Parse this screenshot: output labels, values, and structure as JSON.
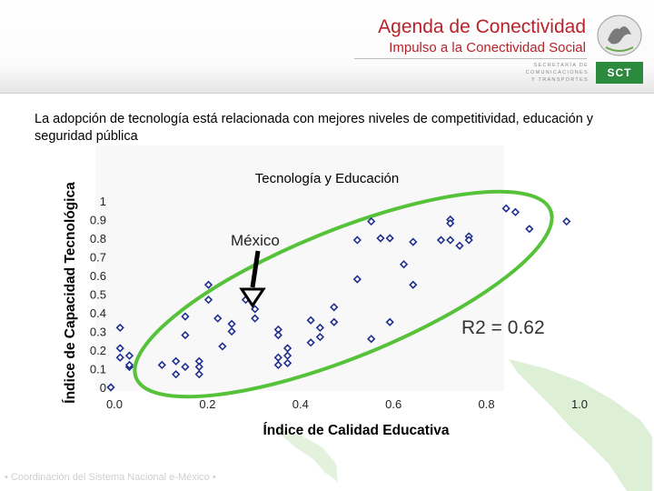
{
  "header": {
    "title": "Agenda de Conectividad",
    "subtitle": "Impulso a la Conectividad Social",
    "secretaria_lines": [
      "SECRETARÍA DE",
      "COMUNICACIONES",
      "Y TRANSPORTES"
    ],
    "logo_text": "SCT",
    "accent_color": "#b8232a",
    "brand_color": "#2b8a3e"
  },
  "intro_text": "La adopción de tecnología está relacionada con mejores niveles de competitividad, educación y seguridad pública",
  "footer_text": "• Coordinación del Sistema Nacional e-México •",
  "chart_data": {
    "type": "scatter",
    "title": "Tecnología y Educación",
    "xlabel": "Índice de Calidad Educativa",
    "ylabel": "Índice de Capacidad Tecnológica",
    "xlim": [
      0,
      1
    ],
    "ylim": [
      0,
      1
    ],
    "x_ticks": [
      "0.0",
      "0.2",
      "0.4",
      "0.6",
      "0.8",
      "1.0"
    ],
    "y_ticks": [
      "0",
      "0.1",
      "0.2",
      "0.3",
      "0.4",
      "0.5",
      "0.6",
      "0.7",
      "0.8",
      "0.9",
      "1"
    ],
    "annotation_label": "México",
    "highlight_point": [
      0.29,
      0.47
    ],
    "r2_label": "R2 = 0.62",
    "marker_color": "#1f2f8f",
    "ellipse_color": "#55c23a",
    "points": [
      [
        0.0,
        0.0
      ],
      [
        0.02,
        0.32
      ],
      [
        0.02,
        0.21
      ],
      [
        0.02,
        0.16
      ],
      [
        0.04,
        0.17
      ],
      [
        0.04,
        0.11
      ],
      [
        0.04,
        0.12
      ],
      [
        0.11,
        0.12
      ],
      [
        0.14,
        0.14
      ],
      [
        0.14,
        0.07
      ],
      [
        0.16,
        0.38
      ],
      [
        0.16,
        0.28
      ],
      [
        0.16,
        0.11
      ],
      [
        0.19,
        0.14
      ],
      [
        0.19,
        0.11
      ],
      [
        0.19,
        0.07
      ],
      [
        0.21,
        0.55
      ],
      [
        0.21,
        0.47
      ],
      [
        0.23,
        0.37
      ],
      [
        0.24,
        0.22
      ],
      [
        0.26,
        0.34
      ],
      [
        0.26,
        0.3
      ],
      [
        0.29,
        0.47
      ],
      [
        0.31,
        0.37
      ],
      [
        0.31,
        0.42
      ],
      [
        0.36,
        0.31
      ],
      [
        0.36,
        0.28
      ],
      [
        0.38,
        0.21
      ],
      [
        0.36,
        0.16
      ],
      [
        0.36,
        0.12
      ],
      [
        0.38,
        0.13
      ],
      [
        0.38,
        0.17
      ],
      [
        0.43,
        0.36
      ],
      [
        0.43,
        0.24
      ],
      [
        0.45,
        0.32
      ],
      [
        0.45,
        0.27
      ],
      [
        0.48,
        0.43
      ],
      [
        0.48,
        0.35
      ],
      [
        0.53,
        0.79
      ],
      [
        0.53,
        0.58
      ],
      [
        0.56,
        0.89
      ],
      [
        0.56,
        0.26
      ],
      [
        0.58,
        0.8
      ],
      [
        0.6,
        0.8
      ],
      [
        0.6,
        0.35
      ],
      [
        0.63,
        0.66
      ],
      [
        0.65,
        0.55
      ],
      [
        0.65,
        0.78
      ],
      [
        0.71,
        0.79
      ],
      [
        0.73,
        0.9
      ],
      [
        0.73,
        0.88
      ],
      [
        0.73,
        0.79
      ],
      [
        0.75,
        0.76
      ],
      [
        0.77,
        0.81
      ],
      [
        0.77,
        0.79
      ],
      [
        0.85,
        0.96
      ],
      [
        0.87,
        0.94
      ],
      [
        0.9,
        0.85
      ],
      [
        0.98,
        0.89
      ]
    ]
  }
}
